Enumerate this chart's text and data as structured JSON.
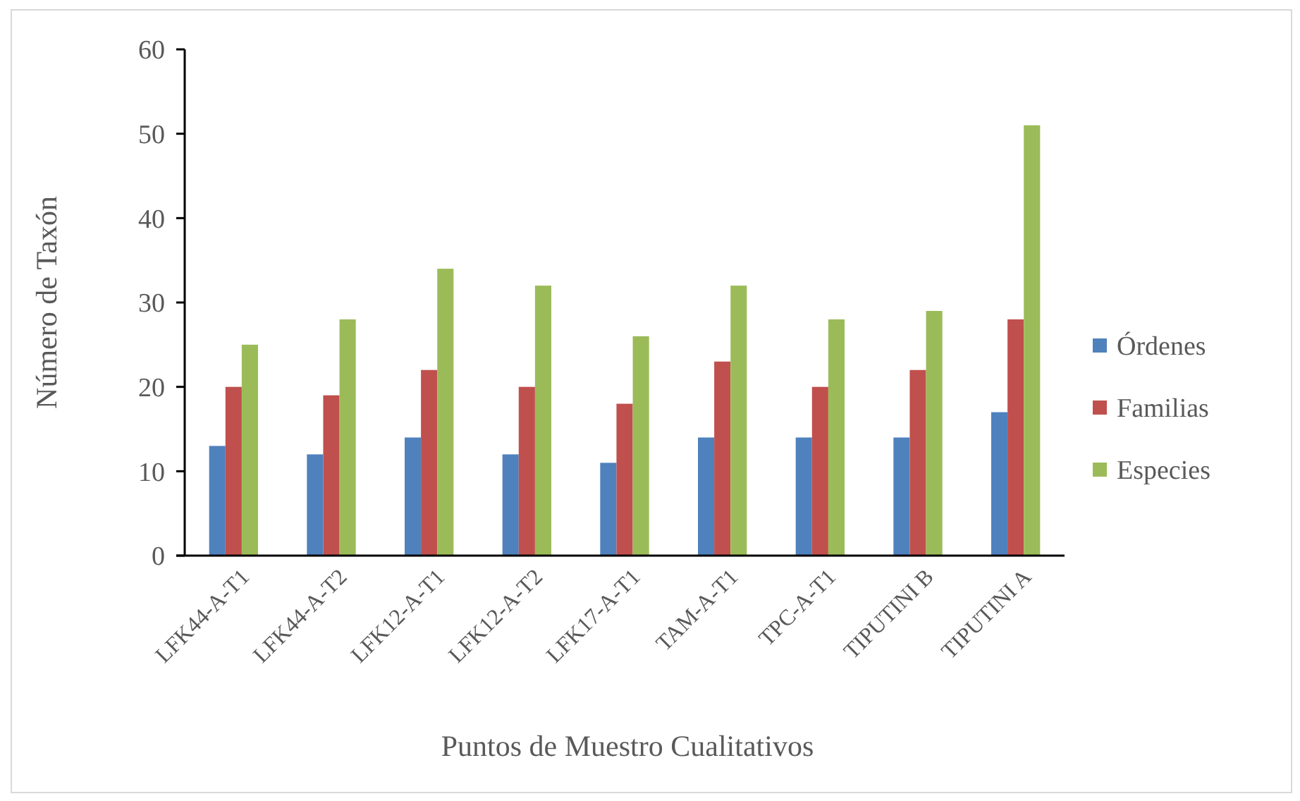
{
  "chart_data": {
    "type": "bar",
    "xlabel": "Puntos de Muestro Cualitativos",
    "ylabel": "Número de Taxón",
    "categories": [
      "LFK44-A-T1",
      "LFK44-A-T2",
      "LFK12-A-T1",
      "LFK12-A-T2",
      "LFK17-A-T1",
      "TAM-A-T1",
      "TPC-A-T1",
      "TIPUTINI B",
      "TIPUTINI A"
    ],
    "series": [
      {
        "name": "Órdenes",
        "color": "#4f81bd",
        "values": [
          13,
          12,
          14,
          12,
          11,
          14,
          14,
          14,
          17
        ]
      },
      {
        "name": "Familias",
        "color": "#c0504d",
        "values": [
          20,
          19,
          22,
          20,
          18,
          23,
          20,
          22,
          28
        ]
      },
      {
        "name": "Especies",
        "color": "#9bbb59",
        "values": [
          25,
          28,
          34,
          32,
          26,
          32,
          28,
          29,
          51
        ]
      }
    ],
    "ylim": [
      0,
      60
    ],
    "yticks": [
      0,
      10,
      20,
      30,
      40,
      50,
      60
    ],
    "grid": false,
    "legend": "right"
  }
}
